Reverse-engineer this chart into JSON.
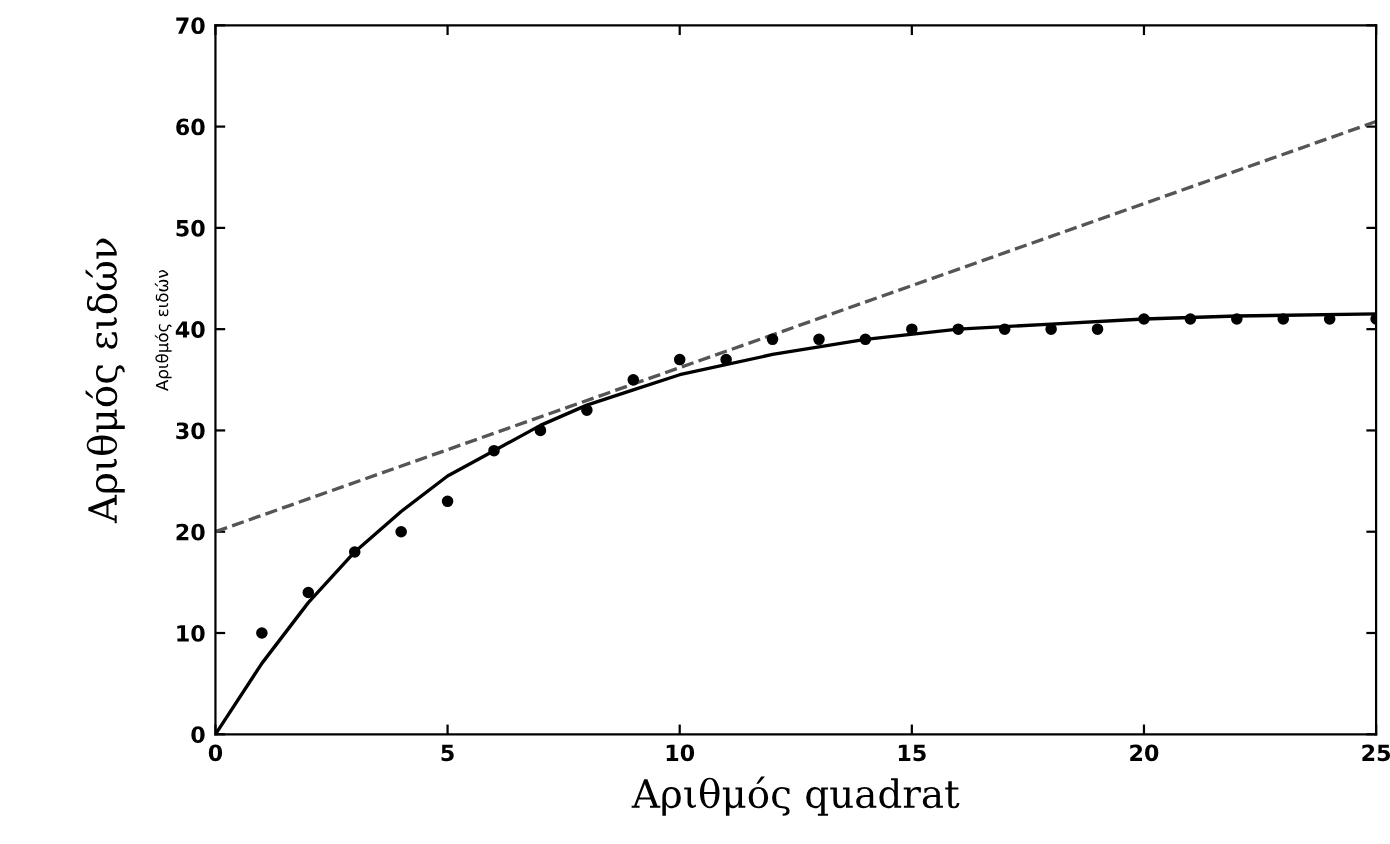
{
  "chart_data": {
    "type": "scatter",
    "xlabel": "Αριθμός quadrat",
    "ylabel": "Αριθμός ειδών",
    "annotations": [
      "Αριθμός ειδών"
    ],
    "xlim": [
      0,
      25
    ],
    "xticks": [
      0,
      5,
      10,
      15,
      20,
      25
    ],
    "ylim": [
      0,
      70
    ],
    "yticks": [
      0,
      10,
      20,
      30,
      40,
      50,
      60,
      70
    ],
    "grid": false,
    "series": [
      {
        "marker": "circle",
        "color": "#000000",
        "x": [
          1,
          2,
          3,
          4,
          5,
          6,
          7,
          8,
          9,
          10,
          11,
          12,
          13,
          14,
          15,
          16,
          17,
          18,
          19,
          20,
          21,
          22,
          23,
          24,
          25
        ],
        "values": [
          10,
          14,
          18,
          20,
          23,
          28,
          30,
          32,
          35,
          37,
          37,
          39,
          39,
          39,
          40,
          40,
          40,
          40,
          40,
          41,
          41,
          41,
          41,
          41,
          41
        ]
      },
      {
        "type": "line",
        "color": "#000000",
        "line_style": "solid",
        "marker": "none",
        "x": [
          0,
          1,
          2,
          3,
          4,
          5,
          6,
          7,
          8,
          9,
          10,
          12,
          14,
          16,
          18,
          20,
          22,
          25
        ],
        "values": [
          0,
          7,
          13,
          18,
          22,
          25.5,
          28,
          30.5,
          32.5,
          34,
          35.5,
          37.5,
          39,
          40,
          40.5,
          41,
          41.3,
          41.5
        ]
      },
      {
        "type": "line",
        "color": "#555555",
        "line_style": "dashed",
        "marker": "none",
        "x": [
          0,
          25
        ],
        "values": [
          20,
          60.5
        ]
      }
    ]
  }
}
